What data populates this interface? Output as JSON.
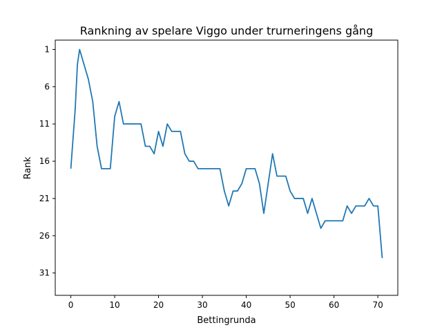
{
  "chart_data": {
    "type": "line",
    "title": "Rankning av spelare Viggo under trurneringens gång",
    "xlabel": "Bettingrunda",
    "ylabel": "Rank",
    "xlim": [
      -3.55,
      74.55
    ],
    "ylim": [
      34.0,
      -0.25
    ],
    "y_inverted": true,
    "grid": false,
    "x_ticks": [
      0,
      10,
      20,
      30,
      40,
      50,
      60,
      70
    ],
    "y_ticks": [
      1,
      6,
      11,
      16,
      21,
      26,
      31
    ],
    "line_color": "#1f77b4",
    "series": [
      {
        "name": "Viggo",
        "x": [
          0,
          1,
          1.5,
          2,
          3,
          4,
          5,
          6,
          7,
          8,
          9,
          10,
          11,
          12,
          13,
          14,
          15,
          16,
          17,
          18,
          19,
          20,
          21,
          22,
          23,
          24,
          25,
          26,
          27,
          28,
          29,
          30,
          31,
          32,
          33,
          34,
          35,
          36,
          37,
          38,
          39,
          40,
          41,
          42,
          43,
          44,
          45,
          46,
          47,
          48,
          49,
          50,
          51,
          52,
          53,
          54,
          55,
          56,
          57,
          58,
          59,
          60,
          61,
          62,
          63,
          64,
          65,
          66,
          67,
          68,
          69,
          70,
          71
        ],
        "values": [
          17,
          9,
          3,
          1,
          3,
          5,
          8,
          14,
          17,
          17,
          17,
          10,
          8,
          11,
          11,
          11,
          11,
          11,
          14,
          14,
          15,
          12,
          14,
          11,
          12,
          12,
          12,
          15,
          16,
          16,
          17,
          17,
          17,
          17,
          17,
          17,
          20,
          22,
          20,
          20,
          19,
          17,
          17,
          17,
          19,
          23,
          19,
          15,
          18,
          18,
          18,
          20,
          21,
          21,
          21,
          23,
          21,
          23,
          25,
          24,
          24,
          24,
          24,
          24,
          22,
          23,
          22,
          22,
          22,
          21,
          22,
          22,
          29
        ]
      }
    ]
  }
}
